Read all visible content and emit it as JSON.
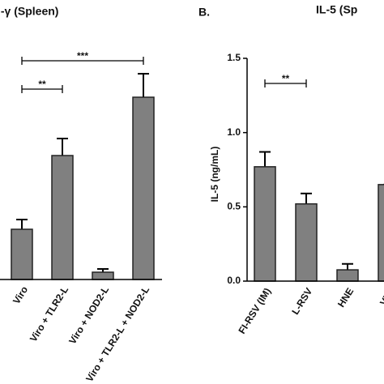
{
  "chart_data": [
    {
      "type": "bar",
      "title": "I-γ (Spleen)",
      "categories": [
        "Viro",
        "Viro + TLR2-L",
        "Viro + NOD2-L",
        "Viro + TLR2-L + NOD2-L"
      ],
      "values": [
        62,
        153,
        9,
        225
      ],
      "errors": [
        12,
        21,
        4,
        29
      ],
      "color": "#808080",
      "ylim": [
        0,
        280
      ],
      "annotations": [
        {
          "text": "**",
          "between": [
            "Viro",
            "Viro + TLR2-L"
          ]
        },
        {
          "text": "***",
          "between": [
            "Viro",
            "Viro + TLR2-L + NOD2-L"
          ]
        }
      ]
    },
    {
      "type": "bar",
      "panel_label": "B.",
      "title": "IL-5 (Sp",
      "y_label": "IL-5 (ng/mL)",
      "categories": [
        "FI-RSV (IM)",
        "L-RSV",
        "HNE",
        "Viro"
      ],
      "values": [
        0.77,
        0.52,
        0.076,
        0.65
      ],
      "errors": [
        0.1,
        0.07,
        0.04,
        0.0
      ],
      "color": "#808080",
      "ylim": [
        0,
        1.5
      ],
      "yticks": [
        {
          "value": 0,
          "label": "0.0"
        },
        {
          "value": 0.5,
          "label": "0.5"
        },
        {
          "value": 1,
          "label": "1.0"
        },
        {
          "value": 1.5,
          "label": "1.5"
        }
      ],
      "annotations": [
        {
          "text": "**",
          "between": [
            "FI-RSV (IM)",
            "L-RSV"
          ]
        }
      ]
    }
  ]
}
